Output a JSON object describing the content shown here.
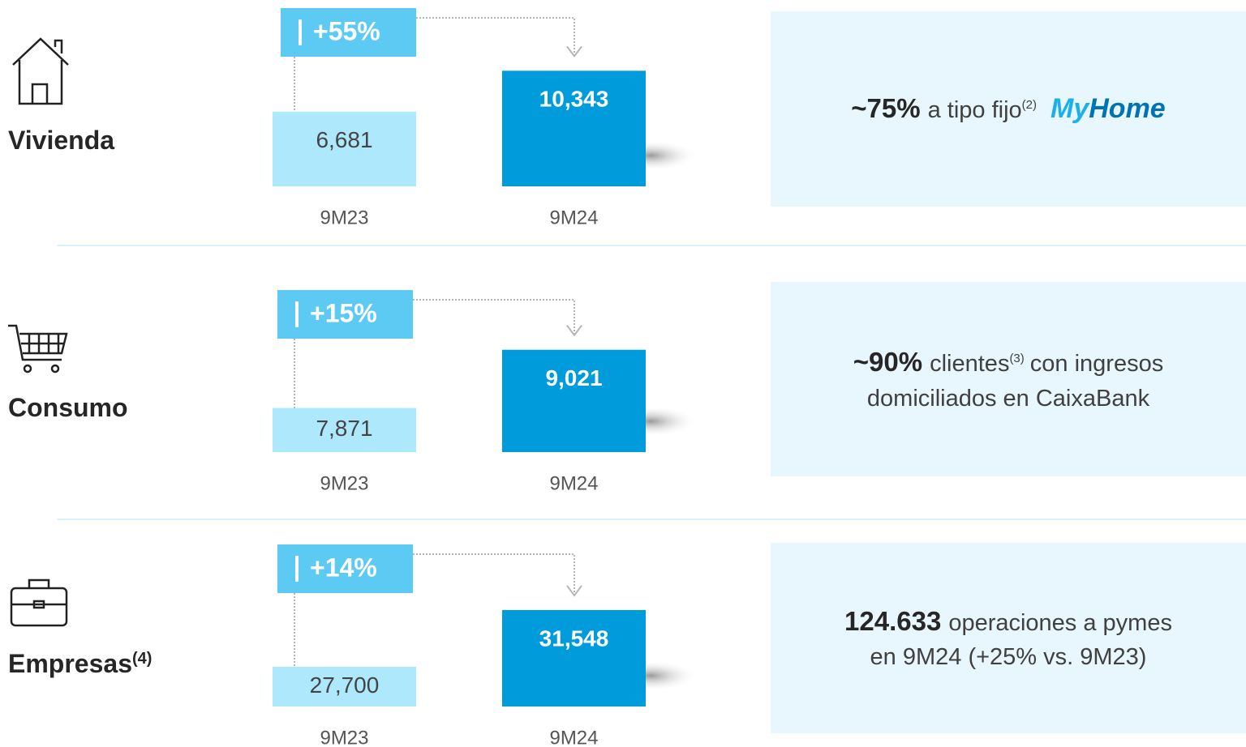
{
  "chart_data": [
    {
      "type": "bar",
      "title": "Vivienda",
      "categories": [
        "9M23",
        "9M24"
      ],
      "values": [
        6681,
        10343
      ],
      "value_labels": [
        "6,681",
        "10,343"
      ],
      "colors": [
        "#ade8fd",
        "#009bdb"
      ],
      "annotation": "+55%",
      "ylim": [
        0,
        14500
      ]
    },
    {
      "type": "bar",
      "title": "Consumo",
      "categories": [
        "9M23",
        "9M24"
      ],
      "values": [
        7871,
        9021
      ],
      "value_labels": [
        "7,871",
        "9,021"
      ],
      "colors": [
        "#ade8fd",
        "#009bdb"
      ],
      "annotation": "+15%",
      "ylim": [
        7000,
        10200
      ]
    },
    {
      "type": "bar",
      "title": "Empresas",
      "title_note": "(4)",
      "categories": [
        "9M23",
        "9M24"
      ],
      "values": [
        27700,
        31548
      ],
      "value_labels": [
        "27,700",
        "31,548"
      ],
      "colors": [
        "#ade8fd",
        "#009bdb"
      ],
      "annotation": "+14%",
      "ylim": [
        25000,
        36000
      ]
    }
  ],
  "highlights": [
    {
      "figure": "~75%",
      "text": "a tipo fijo",
      "note": "(2)",
      "brand": [
        "My",
        "Home"
      ]
    },
    {
      "figure": "~90%",
      "text": "clientes",
      "note": "(3)",
      "text2": "con ingresos",
      "line2": "domiciliados en CaixaBank"
    },
    {
      "figure": "124.633",
      "text": "operaciones a pymes",
      "line2": "en 9M24 (+25% vs. 9M23)"
    }
  ]
}
